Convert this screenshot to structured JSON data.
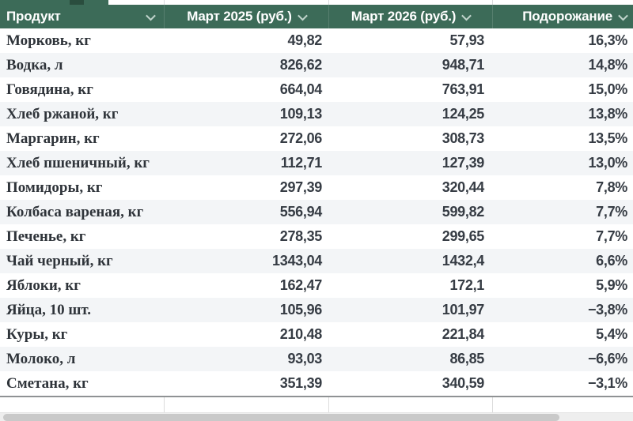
{
  "header": {
    "columns": [
      {
        "name": "product",
        "label": "Продукт"
      },
      {
        "name": "march-2025",
        "label": "Март 2025 (руб.)"
      },
      {
        "name": "march-2026",
        "label": "Март 2026 (руб.)"
      },
      {
        "name": "price-increase",
        "label": "Подорожание"
      }
    ]
  },
  "table": {
    "rows": [
      {
        "product": "Морковь, кг",
        "price_2025": "49,82",
        "price_2026": "57,93",
        "change": "16,3%"
      },
      {
        "product": "Водка, л",
        "price_2025": "826,62",
        "price_2026": "948,71",
        "change": "14,8%"
      },
      {
        "product": "Говядина, кг",
        "price_2025": "664,04",
        "price_2026": "763,91",
        "change": "15,0%"
      },
      {
        "product": "Хлеб ржаной, кг",
        "price_2025": "109,13",
        "price_2026": "124,25",
        "change": "13,8%"
      },
      {
        "product": "Маргарин, кг",
        "price_2025": "272,06",
        "price_2026": "308,73",
        "change": "13,5%"
      },
      {
        "product": "Хлеб пшеничный, кг",
        "price_2025": "112,71",
        "price_2026": "127,39",
        "change": "13,0%"
      },
      {
        "product": "Помидоры, кг",
        "price_2025": "297,39",
        "price_2026": "320,44",
        "change": "7,8%"
      },
      {
        "product": "Колбаса вареная, кг",
        "price_2025": "556,94",
        "price_2026": "599,82",
        "change": "7,7%"
      },
      {
        "product": "Печенье, кг",
        "price_2025": "278,35",
        "price_2026": "299,65",
        "change": "7,7%"
      },
      {
        "product": "Чай черный, кг",
        "price_2025": "1343,04",
        "price_2026": "1432,4",
        "change": "6,6%"
      },
      {
        "product": "Яблоки, кг",
        "price_2025": "162,47",
        "price_2026": "172,1",
        "change": "5,9%"
      },
      {
        "product": "Яйца, 10 шт.",
        "price_2025": "105,96",
        "price_2026": "101,97",
        "change": "−3,8%"
      },
      {
        "product": "Куры, кг",
        "price_2025": "210,48",
        "price_2026": "221,84",
        "change": "5,4%"
      },
      {
        "product": "Молоко, л",
        "price_2025": "93,03",
        "price_2026": "86,85",
        "change": "−6,6%"
      },
      {
        "product": "Сметана, кг",
        "price_2025": "351,39",
        "price_2026": "340,59",
        "change": "−3,1%"
      }
    ]
  },
  "icons": {
    "filter_chevron": "chevron-down"
  },
  "colors": {
    "header_bg": "#3c6b58",
    "header_bg_dark": "#2a4d3e",
    "band": "#f3f5f7",
    "text_dark": "#363c44",
    "scrollbar_thumb": "#c9c9c9",
    "scrollbar_track": "#eeeeee"
  }
}
